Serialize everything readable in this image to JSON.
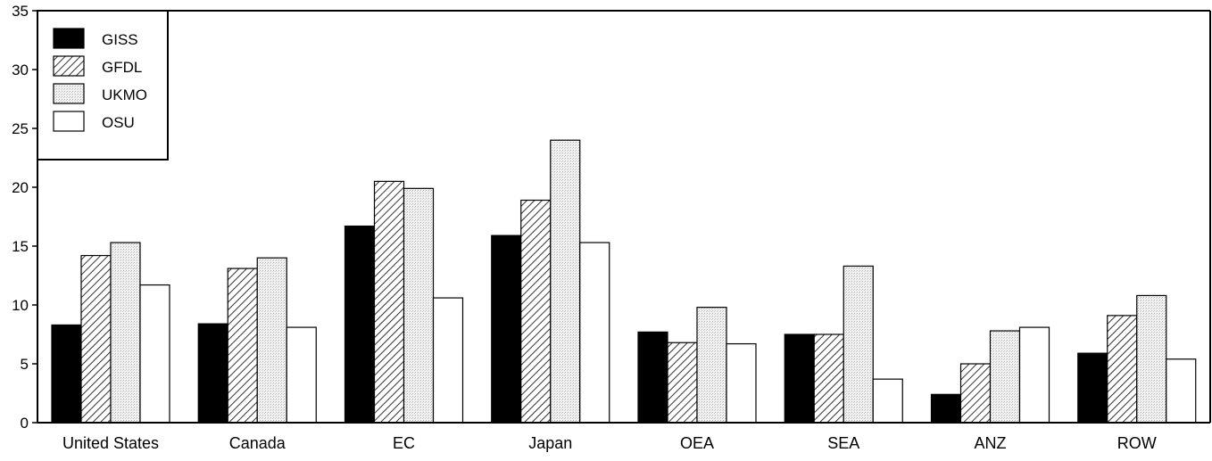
{
  "chart_data": {
    "type": "bar",
    "title": "",
    "xlabel": "",
    "ylabel": "",
    "ylim": [
      0,
      35
    ],
    "yticks": [
      0,
      5,
      10,
      15,
      20,
      25,
      30,
      35
    ],
    "grid": false,
    "legend_position": "top-left",
    "categories": [
      "United States",
      "Canada",
      "EC",
      "Japan",
      "OEA",
      "SEA",
      "ANZ",
      "ROW"
    ],
    "series": [
      {
        "name": "GISS",
        "fill": "solid",
        "color": "#000000",
        "values": [
          8.3,
          8.4,
          16.7,
          15.9,
          7.7,
          7.5,
          2.4,
          5.9
        ]
      },
      {
        "name": "GFDL",
        "fill": "hatched",
        "color": "#000000",
        "values": [
          14.2,
          13.1,
          20.5,
          18.9,
          6.8,
          7.5,
          5.0,
          9.1
        ]
      },
      {
        "name": "UKMO",
        "fill": "light-stipple",
        "color": "#e6e6e6",
        "values": [
          15.3,
          14.0,
          19.9,
          24.0,
          9.8,
          13.3,
          7.8,
          10.8
        ]
      },
      {
        "name": "OSU",
        "fill": "white",
        "color": "#ffffff",
        "values": [
          11.7,
          8.1,
          10.6,
          15.3,
          6.7,
          3.7,
          8.1,
          5.4
        ]
      }
    ]
  }
}
